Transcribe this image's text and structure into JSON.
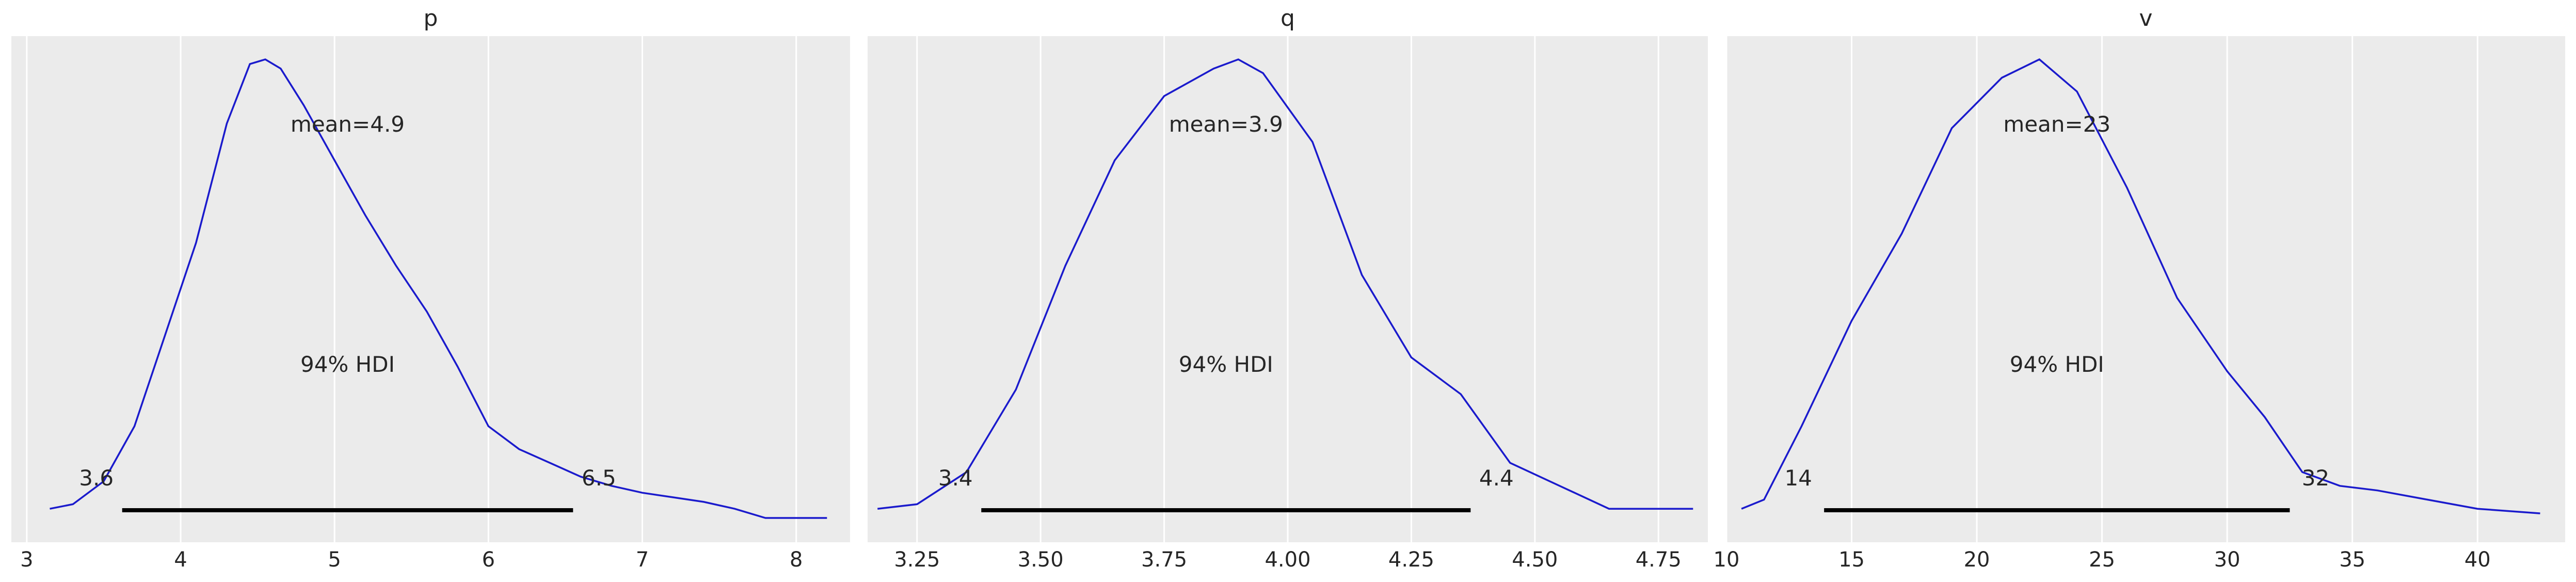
{
  "chart_data": [
    {
      "type": "area",
      "title": "p",
      "xlim": [
        2.9,
        8.35
      ],
      "ticks": [
        3,
        4,
        5,
        6,
        7,
        8
      ],
      "tick_labels": [
        "3",
        "4",
        "5",
        "6",
        "7",
        "8"
      ],
      "mean_label": "mean=4.9",
      "hdi_label": "94% HDI",
      "hdi": [
        3.62,
        6.55
      ],
      "hdi_labels": [
        "3.6",
        "6.5"
      ],
      "grid": true,
      "density": {
        "x": [
          3.15,
          3.3,
          3.5,
          3.7,
          3.9,
          4.1,
          4.3,
          4.45,
          4.55,
          4.65,
          4.8,
          5.0,
          5.2,
          5.4,
          5.6,
          5.8,
          6.0,
          6.2,
          6.4,
          6.6,
          6.8,
          7.0,
          7.2,
          7.4,
          7.6,
          7.8,
          8.0,
          8.2
        ],
        "y": [
          0.02,
          0.03,
          0.08,
          0.2,
          0.4,
          0.6,
          0.86,
          0.99,
          1.0,
          0.98,
          0.9,
          0.78,
          0.66,
          0.55,
          0.45,
          0.33,
          0.2,
          0.15,
          0.12,
          0.09,
          0.07,
          0.055,
          0.045,
          0.035,
          0.02,
          0.0,
          0.0,
          0.0
        ]
      }
    },
    {
      "type": "area",
      "title": "q",
      "xlim": [
        3.15,
        4.85
      ],
      "ticks": [
        3.25,
        3.5,
        3.75,
        4.0,
        4.25,
        4.5,
        4.75
      ],
      "tick_labels": [
        "3.25",
        "3.50",
        "3.75",
        "4.00",
        "4.25",
        "4.50",
        "4.75"
      ],
      "mean_label": "mean=3.9",
      "hdi_label": "94% HDI",
      "hdi": [
        3.38,
        4.37
      ],
      "hdi_labels": [
        "3.4",
        "4.4"
      ],
      "grid": true,
      "density": {
        "x": [
          3.17,
          3.25,
          3.35,
          3.45,
          3.55,
          3.65,
          3.75,
          3.85,
          3.9,
          3.95,
          4.05,
          4.15,
          4.25,
          4.35,
          4.45,
          4.55,
          4.65,
          4.75,
          4.82
        ],
        "y": [
          0.02,
          0.03,
          0.1,
          0.28,
          0.55,
          0.78,
          0.92,
          0.98,
          1.0,
          0.97,
          0.82,
          0.53,
          0.35,
          0.27,
          0.12,
          0.07,
          0.02,
          0.02,
          0.02
        ]
      }
    },
    {
      "type": "area",
      "title": "v",
      "xlim": [
        10,
        43.5
      ],
      "ticks": [
        10,
        15,
        20,
        25,
        30,
        35,
        40
      ],
      "tick_labels": [
        "10",
        "15",
        "20",
        "25",
        "30",
        "35",
        "40"
      ],
      "mean_label": "mean=23",
      "hdi_label": "94% HDI",
      "hdi": [
        13.9,
        32.5
      ],
      "hdi_labels": [
        "14",
        "32"
      ],
      "grid": true,
      "density": {
        "x": [
          10.6,
          11.5,
          13.0,
          15.0,
          17.0,
          19.0,
          21.0,
          22.5,
          24.0,
          26.0,
          28.0,
          30.0,
          31.5,
          33.0,
          34.5,
          36.0,
          38.0,
          40.0,
          42.5
        ],
        "y": [
          0.02,
          0.04,
          0.2,
          0.43,
          0.62,
          0.85,
          0.96,
          1.0,
          0.93,
          0.72,
          0.48,
          0.32,
          0.22,
          0.1,
          0.07,
          0.06,
          0.04,
          0.02,
          0.01
        ]
      }
    }
  ]
}
